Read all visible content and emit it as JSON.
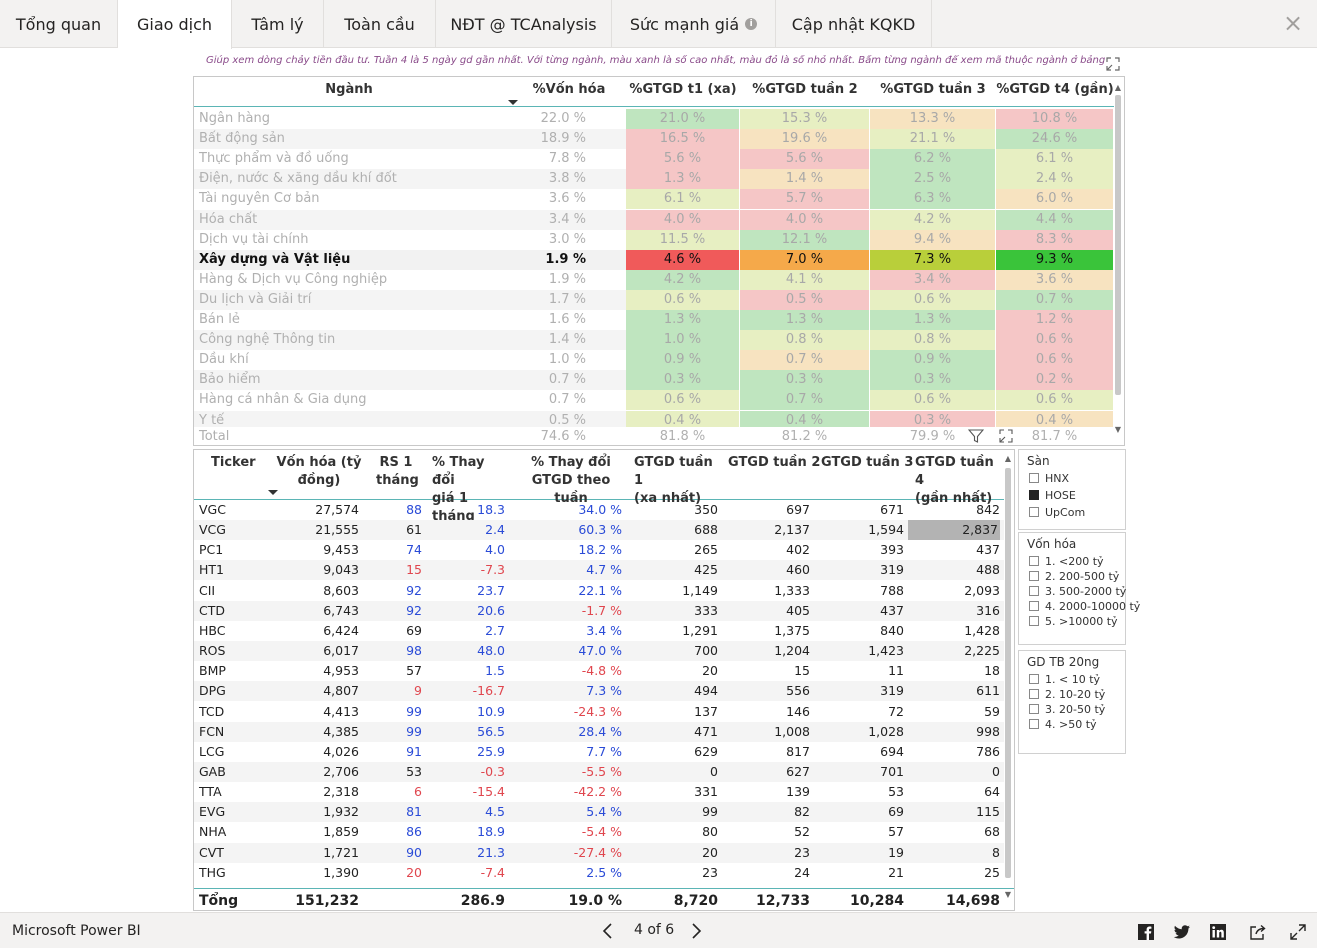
{
  "tabs": [
    {
      "label": "Tổng quan"
    },
    {
      "label": "Giao dịch",
      "active": true
    },
    {
      "label": "Tâm lý"
    },
    {
      "label": "Toàn cầu"
    },
    {
      "label": "NĐT @ TCAnalysis"
    },
    {
      "label": "Sức mạnh giá",
      "info_icon": "info-icon"
    },
    {
      "label": "Cập nhật KQKD"
    }
  ],
  "note": "Giúp xem dòng chảy tiền đầu tư. Tuần 4 là 5 ngày gd gần nhất. Với từng ngành, màu xanh là số cao nhất, màu đỏ là số nhỏ nhất. Bấm từng ngành để xem mã thuộc ngành ở bảng dưới.",
  "matrix": {
    "headers": {
      "nganh": "Ngành",
      "von": "%Vốn hóa",
      "t1": "%GTGD t1 (xa)",
      "t2": "%GTGD tuần 2",
      "t3": "%GTGD tuần 3",
      "t4": "%GTGD t4 (gần)"
    },
    "rows": [
      {
        "name": "Ngân hàng",
        "von": "22.0 %",
        "t1": "21.0 %",
        "t2": "15.3 %",
        "t3": "13.3 %",
        "t4": "10.8 %",
        "c": [
          "#bfe5bf",
          "#e7efc2",
          "#f7e3c0",
          "#f5c6c6"
        ]
      },
      {
        "name": "Bất động sản",
        "von": "18.9 %",
        "t1": "16.5 %",
        "t2": "19.6 %",
        "t3": "21.1 %",
        "t4": "24.6 %",
        "c": [
          "#f5c6c6",
          "#f7e3c0",
          "#e7efc2",
          "#bfe5bf"
        ]
      },
      {
        "name": "Thực phẩm và đồ uống",
        "von": "7.8 %",
        "t1": "5.6 %",
        "t2": "5.6 %",
        "t3": "6.2 %",
        "t4": "6.1 %",
        "c": [
          "#f5c6c6",
          "#f5c6c6",
          "#bfe5bf",
          "#e7efc2"
        ]
      },
      {
        "name": "Điện, nước & xăng dầu khí đốt",
        "von": "3.8 %",
        "t1": "1.3 %",
        "t2": "1.4 %",
        "t3": "2.5 %",
        "t4": "2.4 %",
        "c": [
          "#f5c6c6",
          "#f7e3c0",
          "#bfe5bf",
          "#e7efc2"
        ]
      },
      {
        "name": "Tài nguyên Cơ bản",
        "von": "3.6 %",
        "t1": "6.1 %",
        "t2": "5.7 %",
        "t3": "6.3 %",
        "t4": "6.0 %",
        "c": [
          "#e7efc2",
          "#f5c6c6",
          "#bfe5bf",
          "#f7e3c0"
        ]
      },
      {
        "name": "Hóa chất",
        "von": "3.4 %",
        "t1": "4.0 %",
        "t2": "4.0 %",
        "t3": "4.2 %",
        "t4": "4.4 %",
        "c": [
          "#f5c6c6",
          "#f5c6c6",
          "#e7efc2",
          "#bfe5bf"
        ]
      },
      {
        "name": "Dịch vụ tài chính",
        "von": "3.0 %",
        "t1": "11.5 %",
        "t2": "12.1 %",
        "t3": "9.4 %",
        "t4": "8.3 %",
        "c": [
          "#e7efc2",
          "#bfe5bf",
          "#f7e3c0",
          "#f5c6c6"
        ]
      },
      {
        "name": "Xây dựng và Vật liệu",
        "von": "1.9 %",
        "t1": "4.6 %",
        "t2": "7.0 %",
        "t3": "7.3 %",
        "t4": "9.3 %",
        "c": [
          "#f05a5a",
          "#f5a94a",
          "#b9cf3a",
          "#3ac43a"
        ],
        "highlight": true
      },
      {
        "name": "Hàng & Dịch vụ Công nghiệp",
        "von": "1.9 %",
        "t1": "4.2 %",
        "t2": "4.1 %",
        "t3": "3.4 %",
        "t4": "3.6 %",
        "c": [
          "#bfe5bf",
          "#e7efc2",
          "#f5c6c6",
          "#f7e3c0"
        ]
      },
      {
        "name": "Du lịch và Giải trí",
        "von": "1.7 %",
        "t1": "0.6 %",
        "t2": "0.5 %",
        "t3": "0.6 %",
        "t4": "0.7 %",
        "c": [
          "#e7efc2",
          "#f5c6c6",
          "#e7efc2",
          "#bfe5bf"
        ]
      },
      {
        "name": "Bán lẻ",
        "von": "1.6 %",
        "t1": "1.3 %",
        "t2": "1.3 %",
        "t3": "1.3 %",
        "t4": "1.2 %",
        "c": [
          "#bfe5bf",
          "#bfe5bf",
          "#bfe5bf",
          "#f5c6c6"
        ]
      },
      {
        "name": "Công nghệ Thông tin",
        "von": "1.4 %",
        "t1": "1.0 %",
        "t2": "0.8 %",
        "t3": "0.8 %",
        "t4": "0.6 %",
        "c": [
          "#bfe5bf",
          "#e7efc2",
          "#e7efc2",
          "#f5c6c6"
        ]
      },
      {
        "name": "Dầu khí",
        "von": "1.0 %",
        "t1": "0.9 %",
        "t2": "0.7 %",
        "t3": "0.9 %",
        "t4": "0.6 %",
        "c": [
          "#bfe5bf",
          "#f7e3c0",
          "#bfe5bf",
          "#f5c6c6"
        ]
      },
      {
        "name": "Bảo hiểm",
        "von": "0.7 %",
        "t1": "0.3 %",
        "t2": "0.3 %",
        "t3": "0.3 %",
        "t4": "0.2 %",
        "c": [
          "#bfe5bf",
          "#bfe5bf",
          "#bfe5bf",
          "#f5c6c6"
        ]
      },
      {
        "name": "Hàng cá nhân & Gia dụng",
        "von": "0.7 %",
        "t1": "0.6 %",
        "t2": "0.7 %",
        "t3": "0.6 %",
        "t4": "0.6 %",
        "c": [
          "#e7efc2",
          "#bfe5bf",
          "#e7efc2",
          "#e7efc2"
        ]
      },
      {
        "name": "Y tế",
        "von": "0.5 %",
        "t1": "0.4 %",
        "t2": "0.4 %",
        "t3": "0.3 %",
        "t4": "0.4 %",
        "c": [
          "#e7efc2",
          "#bfe5bf",
          "#f5c6c6",
          "#f7e3c0"
        ]
      }
    ],
    "total": {
      "name": "Total",
      "von": "74.6 %",
      "t1": "81.8 %",
      "t2": "81.2 %",
      "t3": "79.9 %",
      "t4": "81.7 %"
    }
  },
  "tickers": {
    "headers": {
      "ticker": "Ticker",
      "von_a": "Vốn hóa (tỷ",
      "von_b": "đồng)",
      "rs_a": "RS 1",
      "rs_b": "tháng",
      "chg_a": "% Thay đổi",
      "chg_b": "giá 1 tháng",
      "gchg_a": "% Thay đổi",
      "gchg_b": "GTGD theo tuần",
      "g1_a": "GTGD tuần 1",
      "g1_b": "(xa nhất)",
      "g2": "GTGD tuần 2",
      "g3": "GTGD tuần 3",
      "g4_a": "GTGD tuần 4",
      "g4_b": "(gần nhất)"
    },
    "rows": [
      {
        "tk": "VGC",
        "von": "27,574",
        "rs": "88",
        "rsc": "blue",
        "chg": "18.3",
        "chgc": "blue",
        "gchg": "34.0 %",
        "gchgc": "blue",
        "g1": "350",
        "g2": "697",
        "g3": "671",
        "g4": "842"
      },
      {
        "tk": "VCG",
        "von": "21,555",
        "rs": "61",
        "rsc": "",
        "chg": "2.4",
        "chgc": "blue",
        "gchg": "60.3 %",
        "gchgc": "blue",
        "g1": "688",
        "g2": "2,137",
        "g3": "1,594",
        "g4": "2,837",
        "g4hl": true
      },
      {
        "tk": "PC1",
        "von": "9,453",
        "rs": "74",
        "rsc": "blue",
        "chg": "4.0",
        "chgc": "blue",
        "gchg": "18.2 %",
        "gchgc": "blue",
        "g1": "265",
        "g2": "402",
        "g3": "393",
        "g4": "437"
      },
      {
        "tk": "HT1",
        "von": "9,043",
        "rs": "15",
        "rsc": "red",
        "chg": "-7.3",
        "chgc": "red",
        "gchg": "4.7 %",
        "gchgc": "blue",
        "g1": "425",
        "g2": "460",
        "g3": "319",
        "g4": "488"
      },
      {
        "tk": "CII",
        "von": "8,603",
        "rs": "92",
        "rsc": "blue",
        "chg": "23.7",
        "chgc": "blue",
        "gchg": "22.1 %",
        "gchgc": "blue",
        "g1": "1,149",
        "g2": "1,333",
        "g3": "788",
        "g4": "2,093"
      },
      {
        "tk": "CTD",
        "von": "6,743",
        "rs": "92",
        "rsc": "blue",
        "chg": "20.6",
        "chgc": "blue",
        "gchg": "-1.7 %",
        "gchgc": "red",
        "g1": "333",
        "g2": "405",
        "g3": "437",
        "g4": "316"
      },
      {
        "tk": "HBC",
        "von": "6,424",
        "rs": "69",
        "rsc": "",
        "chg": "2.7",
        "chgc": "blue",
        "gchg": "3.4 %",
        "gchgc": "blue",
        "g1": "1,291",
        "g2": "1,375",
        "g3": "840",
        "g4": "1,428"
      },
      {
        "tk": "ROS",
        "von": "6,017",
        "rs": "98",
        "rsc": "blue",
        "chg": "48.0",
        "chgc": "blue",
        "gchg": "47.0 %",
        "gchgc": "blue",
        "g1": "700",
        "g2": "1,204",
        "g3": "1,423",
        "g4": "2,225"
      },
      {
        "tk": "BMP",
        "von": "4,953",
        "rs": "57",
        "rsc": "",
        "chg": "1.5",
        "chgc": "blue",
        "gchg": "-4.8 %",
        "gchgc": "red",
        "g1": "20",
        "g2": "15",
        "g3": "11",
        "g4": "18"
      },
      {
        "tk": "DPG",
        "von": "4,807",
        "rs": "9",
        "rsc": "red",
        "chg": "-16.7",
        "chgc": "red",
        "gchg": "7.3 %",
        "gchgc": "blue",
        "g1": "494",
        "g2": "556",
        "g3": "319",
        "g4": "611"
      },
      {
        "tk": "TCD",
        "von": "4,413",
        "rs": "99",
        "rsc": "blue",
        "chg": "10.9",
        "chgc": "blue",
        "gchg": "-24.3 %",
        "gchgc": "red",
        "g1": "137",
        "g2": "146",
        "g3": "72",
        "g4": "59"
      },
      {
        "tk": "FCN",
        "von": "4,385",
        "rs": "99",
        "rsc": "blue",
        "chg": "56.5",
        "chgc": "blue",
        "gchg": "28.4 %",
        "gchgc": "blue",
        "g1": "471",
        "g2": "1,008",
        "g3": "1,028",
        "g4": "998"
      },
      {
        "tk": "LCG",
        "von": "4,026",
        "rs": "91",
        "rsc": "blue",
        "chg": "25.9",
        "chgc": "blue",
        "gchg": "7.7 %",
        "gchgc": "blue",
        "g1": "629",
        "g2": "817",
        "g3": "694",
        "g4": "786"
      },
      {
        "tk": "GAB",
        "von": "2,706",
        "rs": "53",
        "rsc": "",
        "chg": "-0.3",
        "chgc": "red",
        "gchg": "-5.5 %",
        "gchgc": "red",
        "g1": "0",
        "g2": "627",
        "g3": "701",
        "g4": "0"
      },
      {
        "tk": "TTA",
        "von": "2,318",
        "rs": "6",
        "rsc": "red",
        "chg": "-15.4",
        "chgc": "red",
        "gchg": "-42.2 %",
        "gchgc": "red",
        "g1": "331",
        "g2": "139",
        "g3": "53",
        "g4": "64"
      },
      {
        "tk": "EVG",
        "von": "1,932",
        "rs": "81",
        "rsc": "blue",
        "chg": "4.5",
        "chgc": "blue",
        "gchg": "5.4 %",
        "gchgc": "blue",
        "g1": "99",
        "g2": "82",
        "g3": "69",
        "g4": "115"
      },
      {
        "tk": "NHA",
        "von": "1,859",
        "rs": "86",
        "rsc": "blue",
        "chg": "18.9",
        "chgc": "blue",
        "gchg": "-5.4 %",
        "gchgc": "red",
        "g1": "80",
        "g2": "52",
        "g3": "57",
        "g4": "68"
      },
      {
        "tk": "CVT",
        "von": "1,721",
        "rs": "90",
        "rsc": "blue",
        "chg": "21.3",
        "chgc": "blue",
        "gchg": "-27.4 %",
        "gchgc": "red",
        "g1": "20",
        "g2": "23",
        "g3": "19",
        "g4": "8"
      },
      {
        "tk": "THG",
        "von": "1,390",
        "rs": "20",
        "rsc": "red",
        "chg": "-7.4",
        "chgc": "red",
        "gchg": "2.5 %",
        "gchgc": "blue",
        "g1": "23",
        "g2": "24",
        "g3": "21",
        "g4": "25"
      }
    ],
    "total": {
      "tk": "Tổng",
      "von": "151,232",
      "chg": "286.9",
      "gchg": "19.0 %",
      "g1": "8,720",
      "g2": "12,733",
      "g3": "10,284",
      "g4": "14,698"
    }
  },
  "slicers": {
    "san": {
      "title": "Sàn",
      "items": [
        {
          "label": "HNX",
          "checked": false
        },
        {
          "label": "HOSE",
          "checked": true
        },
        {
          "label": "UpCom",
          "checked": false
        }
      ]
    },
    "vonhoa": {
      "title": "Vốn hóa",
      "items": [
        {
          "label": "1. <200 tỷ"
        },
        {
          "label": "2. 200-500 tỷ"
        },
        {
          "label": "3. 500-2000 tỷ"
        },
        {
          "label": "4. 2000-10000 tỷ"
        },
        {
          "label": "5. >10000 tỷ"
        }
      ]
    },
    "gdtb": {
      "title": "GD TB 20ng",
      "items": [
        {
          "label": "1. < 10 tỷ"
        },
        {
          "label": "2. 10-20 tỷ"
        },
        {
          "label": "3. 20-50 tỷ"
        },
        {
          "label": "4. >50 tỷ"
        }
      ]
    }
  },
  "bottom": {
    "brand": "Microsoft Power BI",
    "page": "4 of 6"
  }
}
